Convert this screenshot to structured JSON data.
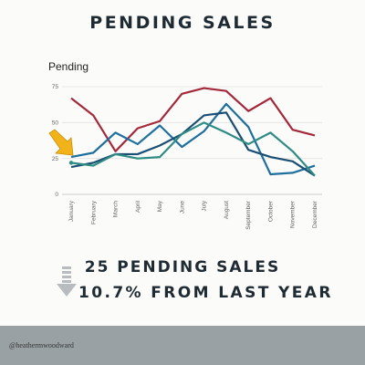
{
  "header": {
    "title": "PENDING SALES"
  },
  "chart_data": {
    "type": "line",
    "title": "Pending",
    "categories": [
      "January",
      "February",
      "March",
      "April",
      "May",
      "June",
      "July",
      "August",
      "September",
      "October",
      "November",
      "December"
    ],
    "yticks": [
      0,
      25,
      50,
      75
    ],
    "ylim": [
      0,
      75
    ],
    "grid": true,
    "series": [
      {
        "color": "#a3283a",
        "values": [
          67,
          55,
          30,
          46,
          51,
          70,
          74,
          72,
          58,
          67,
          45,
          41
        ]
      },
      {
        "color": "#1f6f9e",
        "values": [
          26,
          29,
          43,
          35,
          48,
          33,
          44,
          63,
          47,
          14,
          15,
          20
        ]
      },
      {
        "color": "#1a4e73",
        "values": [
          19,
          22,
          28,
          28,
          34,
          42,
          55,
          57,
          31,
          26,
          23,
          13
        ]
      },
      {
        "color": "#2e8c85",
        "values": [
          22,
          20,
          28,
          25,
          26,
          42,
          50,
          43,
          35,
          43,
          30,
          13
        ]
      }
    ]
  },
  "stats": {
    "line1": "25 PENDING SALES",
    "line2": "10.7% FROM LAST YEAR"
  },
  "footer": {
    "handle": "@heathermwoodward"
  },
  "colors": {
    "arrow_highlight": "#f2b21a",
    "down_arrow": "#b8bcbf",
    "footer_bg": "#9aa1a5"
  }
}
